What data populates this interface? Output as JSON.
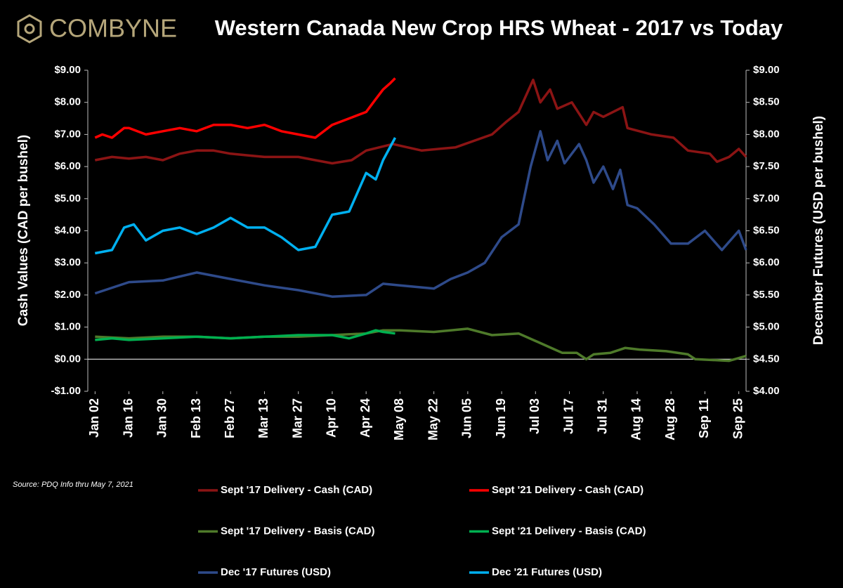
{
  "logo": "COMBYNE",
  "chart_data": {
    "type": "line",
    "title": "Western Canada New Crop HRS Wheat - 2017 vs Today",
    "source": "Source: PDQ Info thru May 7, 2021",
    "ylabel": "Cash Values (CAD per bushel)",
    "y2label": "December Futures (USD per bushel)",
    "xlim": [
      -3,
      269
    ],
    "xticks": [
      {
        "value": 0,
        "label": "Jan 02"
      },
      {
        "value": 14,
        "label": "Jan 16"
      },
      {
        "value": 28,
        "label": "Jan 30"
      },
      {
        "value": 42,
        "label": "Feb 13"
      },
      {
        "value": 56,
        "label": "Feb 27"
      },
      {
        "value": 70,
        "label": "Mar 13"
      },
      {
        "value": 84,
        "label": "Mar 27"
      },
      {
        "value": 98,
        "label": "Apr 10"
      },
      {
        "value": 112,
        "label": "Apr 24"
      },
      {
        "value": 126,
        "label": "May 08"
      },
      {
        "value": 140,
        "label": "May 22"
      },
      {
        "value": 154,
        "label": "Jun 05"
      },
      {
        "value": 168,
        "label": "Jun 19"
      },
      {
        "value": 182,
        "label": "Jul 03"
      },
      {
        "value": 196,
        "label": "Jul 17"
      },
      {
        "value": 210,
        "label": "Jul 31"
      },
      {
        "value": 224,
        "label": "Aug 14"
      },
      {
        "value": 238,
        "label": "Aug 28"
      },
      {
        "value": 252,
        "label": "Sep 11"
      },
      {
        "value": 266,
        "label": "Sep 25"
      }
    ],
    "ylim": [
      -1,
      9
    ],
    "yticks": [
      {
        "value": -1,
        "label": "-$1.00"
      },
      {
        "value": 0,
        "label": "$0.00"
      },
      {
        "value": 1,
        "label": "$1.00"
      },
      {
        "value": 2,
        "label": "$2.00"
      },
      {
        "value": 3,
        "label": "$3.00"
      },
      {
        "value": 4,
        "label": "$4.00"
      },
      {
        "value": 5,
        "label": "$5.00"
      },
      {
        "value": 6,
        "label": "$6.00"
      },
      {
        "value": 7,
        "label": "$7.00"
      },
      {
        "value": 8,
        "label": "$8.00"
      },
      {
        "value": 9,
        "label": "$9.00"
      }
    ],
    "y2lim": [
      4,
      9
    ],
    "y2ticks": [
      {
        "value": 4,
        "label": "$4.00"
      },
      {
        "value": 4.5,
        "label": "$4.50"
      },
      {
        "value": 5,
        "label": "$5.00"
      },
      {
        "value": 5.5,
        "label": "$5.50"
      },
      {
        "value": 6,
        "label": "$6.00"
      },
      {
        "value": 6.5,
        "label": "$6.50"
      },
      {
        "value": 7,
        "label": "$7.00"
      },
      {
        "value": 7.5,
        "label": "$7.50"
      },
      {
        "value": 8,
        "label": "$8.00"
      },
      {
        "value": 8.5,
        "label": "$8.50"
      },
      {
        "value": 9,
        "label": "$9.00"
      }
    ],
    "series": [
      {
        "name": "Sept '17 Delivery - Cash (CAD)",
        "color": "#8b1414",
        "x": [
          0,
          7,
          14,
          21,
          28,
          35,
          42,
          49,
          56,
          63,
          70,
          77,
          84,
          91,
          98,
          106,
          112,
          123,
          135,
          149,
          164,
          170,
          175,
          181,
          184,
          188,
          191,
          197,
          203,
          206,
          210,
          218,
          220,
          230,
          239,
          245,
          254,
          257,
          262,
          266,
          269
        ],
        "values": [
          6.2,
          6.3,
          6.25,
          6.3,
          6.2,
          6.4,
          6.5,
          6.5,
          6.4,
          6.35,
          6.3,
          6.3,
          6.3,
          6.2,
          6.1,
          6.2,
          6.5,
          6.7,
          6.5,
          6.6,
          7.0,
          7.4,
          7.7,
          8.7,
          8.0,
          8.4,
          7.8,
          8.0,
          7.3,
          7.7,
          7.55,
          7.85,
          7.2,
          7.0,
          6.9,
          6.5,
          6.4,
          6.15,
          6.3,
          6.55,
          6.3
        ]
      },
      {
        "name": "Sept '21 Delivery - Cash (CAD)",
        "color": "#ff0000",
        "x": [
          0,
          3,
          7,
          12,
          14,
          21,
          28,
          35,
          42,
          49,
          56,
          63,
          70,
          77,
          84,
          91,
          98,
          105,
          112,
          116,
          119,
          122,
          124
        ],
        "values": [
          6.9,
          7.0,
          6.9,
          7.2,
          7.2,
          7.0,
          7.1,
          7.2,
          7.1,
          7.3,
          7.3,
          7.2,
          7.3,
          7.1,
          7.0,
          6.9,
          7.3,
          7.5,
          7.7,
          8.1,
          8.4,
          8.6,
          8.75
        ]
      },
      {
        "name": "Sept '17 Delivery - Basis (CAD)",
        "color": "#4e7a2a",
        "x": [
          0,
          14,
          28,
          42,
          56,
          70,
          84,
          98,
          112,
          119,
          126,
          140,
          154,
          164,
          175,
          184,
          190,
          193,
          199,
          203,
          206,
          213,
          219,
          225,
          236,
          245,
          248,
          262,
          269
        ],
        "values": [
          0.7,
          0.65,
          0.7,
          0.7,
          0.65,
          0.7,
          0.7,
          0.75,
          0.8,
          0.9,
          0.9,
          0.85,
          0.95,
          0.75,
          0.8,
          0.5,
          0.3,
          0.2,
          0.2,
          0.0,
          0.15,
          0.2,
          0.35,
          0.3,
          0.25,
          0.15,
          0.0,
          -0.05,
          0.1
        ]
      },
      {
        "name": "Sept '21 Delivery - Basis (CAD)",
        "color": "#00b050",
        "x": [
          0,
          7,
          14,
          28,
          42,
          56,
          70,
          84,
          98,
          105,
          112,
          116,
          119,
          124
        ],
        "values": [
          0.6,
          0.65,
          0.6,
          0.65,
          0.7,
          0.65,
          0.7,
          0.75,
          0.75,
          0.65,
          0.8,
          0.9,
          0.85,
          0.8
        ]
      },
      {
        "name": "Dec '17 Futures (USD)",
        "color": "#2e4a8a",
        "axis": "y2",
        "x": [
          0,
          14,
          28,
          42,
          56,
          70,
          84,
          98,
          112,
          119,
          126,
          140,
          147,
          154,
          161,
          168,
          175,
          180,
          184,
          187,
          191,
          194,
          200,
          203,
          206,
          210,
          214,
          217,
          220,
          224,
          231,
          238,
          245,
          252,
          259,
          266,
          269
        ],
        "values": [
          5.525,
          5.7,
          5.725,
          5.85,
          5.75,
          5.65,
          5.575,
          5.475,
          5.5,
          5.675,
          5.65,
          5.6,
          5.75,
          5.85,
          6.0,
          6.4,
          6.6,
          7.5,
          8.05,
          7.6,
          7.9,
          7.55,
          7.85,
          7.6,
          7.25,
          7.5,
          7.15,
          7.45,
          6.9,
          6.85,
          6.6,
          6.3,
          6.3,
          6.5,
          6.2,
          6.5,
          6.2
        ]
      },
      {
        "name": "Dec '21 Futures (USD)",
        "color": "#00b0f0",
        "axis": "y2",
        "x": [
          0,
          7,
          12,
          16,
          21,
          28,
          35,
          42,
          49,
          56,
          63,
          70,
          77,
          84,
          91,
          98,
          105,
          112,
          116,
          119,
          124
        ],
        "values": [
          6.15,
          6.2,
          6.55,
          6.6,
          6.35,
          6.5,
          6.55,
          6.45,
          6.55,
          6.7,
          6.55,
          6.55,
          6.4,
          6.2,
          6.25,
          6.75,
          6.8,
          7.4,
          7.3,
          7.6,
          7.95
        ]
      }
    ]
  }
}
